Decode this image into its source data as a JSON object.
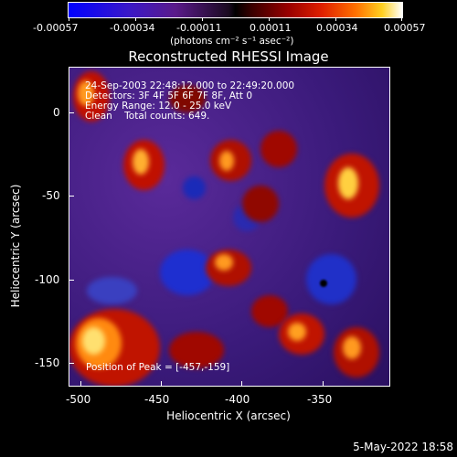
{
  "colorbar": {
    "ticks": [
      "-0.00057",
      "-0.00034",
      "-0.00011",
      "0.00011",
      "0.00034",
      "0.00057"
    ],
    "units": "(photons cm⁻² s⁻¹ asec⁻²)"
  },
  "plot": {
    "title": "Reconstructed RHESSI Image",
    "info": [
      "24-Sep-2003 22:48:12.000 to 22:49:20.000",
      "Detectors: 3F 4F 5F 6F 7F 8F, Att 0",
      "Energy Range: 12.0 - 25.0 keV",
      "Clean    Total counts: 649."
    ],
    "position_label": "Position of Peak = [-457,-159]",
    "xlabel": "Heliocentric X (arcsec)",
    "ylabel": "Heliocentric Y (arcsec)",
    "xticks": [
      "-500",
      "-450",
      "-400",
      "-350"
    ],
    "yticks": [
      "0",
      "-50",
      "-100",
      "-150"
    ],
    "xlim": [
      -500,
      -320
    ],
    "ylim": [
      -165,
      25
    ]
  },
  "footer": {
    "date": "5-May-2022 18:58"
  }
}
